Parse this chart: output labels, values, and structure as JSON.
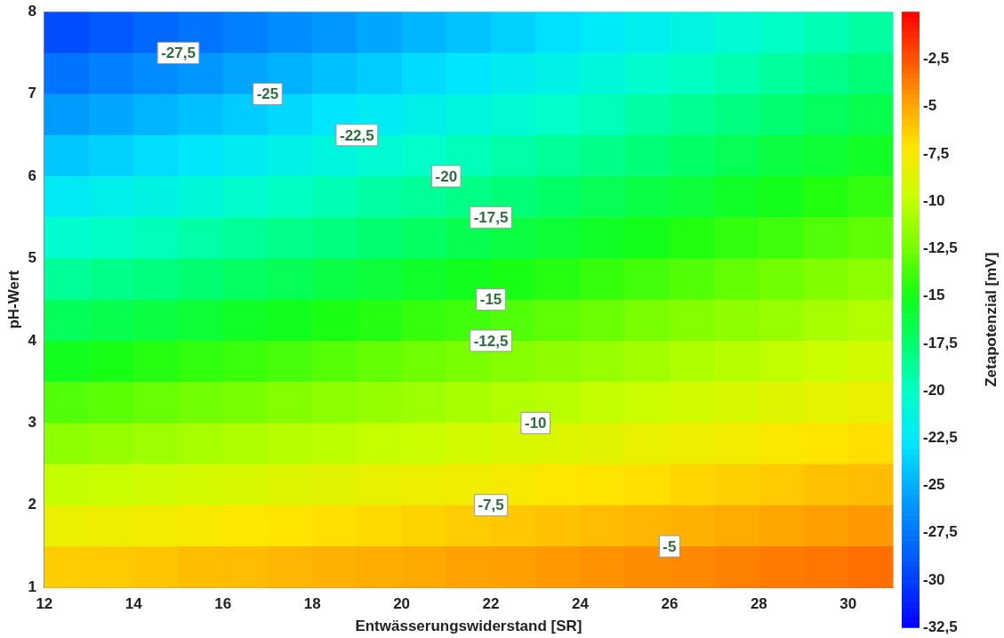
{
  "chart_data": {
    "type": "heatmap",
    "xlabel": "Entwässerungswiderstand [SR]",
    "ylabel": "pH-Wert",
    "clabel": "Zetapotenzial [mV]",
    "x": [
      12.5,
      13.5,
      14.5,
      15.5,
      16.5,
      17.5,
      18.5,
      19.5,
      20.5,
      21.5,
      22.5,
      23.5,
      24.5,
      25.5,
      26.5,
      27.5,
      28.5,
      29.5,
      30.5
    ],
    "y": [
      7.75,
      7.25,
      6.75,
      6.25,
      5.75,
      5.25,
      4.75,
      4.25,
      3.75,
      3.25,
      2.75,
      2.25,
      1.75,
      1.25
    ],
    "cells": [
      [
        -29.4,
        -28.8,
        -28.2,
        -27.6,
        -27.0,
        -26.5,
        -25.9,
        -25.3,
        -24.7,
        -24.2,
        -23.6,
        -23.0,
        -22.4,
        -21.9,
        -21.3,
        -20.7,
        -20.1,
        -19.6,
        -19.0
      ],
      [
        -27.6,
        -27.0,
        -26.5,
        -26.0,
        -25.4,
        -24.9,
        -24.3,
        -23.8,
        -23.2,
        -22.7,
        -22.1,
        -21.6,
        -21.0,
        -20.5,
        -20.0,
        -19.4,
        -18.9,
        -18.3,
        -17.8
      ],
      [
        -25.8,
        -25.3,
        -24.8,
        -24.3,
        -23.8,
        -23.3,
        -22.7,
        -22.2,
        -21.7,
        -21.2,
        -20.7,
        -20.2,
        -19.7,
        -19.1,
        -18.6,
        -18.1,
        -17.6,
        -17.1,
        -16.6
      ],
      [
        -24.0,
        -23.6,
        -23.1,
        -22.6,
        -22.1,
        -21.6,
        -21.2,
        -20.7,
        -20.2,
        -19.7,
        -19.2,
        -18.7,
        -18.3,
        -17.8,
        -17.3,
        -16.8,
        -16.3,
        -15.9,
        -15.4
      ],
      [
        -22.3,
        -21.8,
        -21.4,
        -20.9,
        -20.5,
        -20.0,
        -19.6,
        -19.1,
        -18.7,
        -18.2,
        -17.8,
        -17.3,
        -16.9,
        -16.4,
        -16.0,
        -15.5,
        -15.1,
        -14.6,
        -14.2
      ],
      [
        -20.5,
        -20.1,
        -19.7,
        -19.2,
        -18.8,
        -18.4,
        -18.0,
        -17.6,
        -17.2,
        -16.7,
        -16.3,
        -15.9,
        -15.5,
        -15.1,
        -14.6,
        -14.2,
        -13.8,
        -13.4,
        -13.0
      ],
      [
        -18.7,
        -18.3,
        -18.0,
        -17.6,
        -17.2,
        -16.8,
        -16.4,
        -16.0,
        -15.6,
        -15.2,
        -14.9,
        -14.5,
        -14.1,
        -13.7,
        -13.3,
        -12.9,
        -12.5,
        -12.1,
        -11.7
      ],
      [
        -17.0,
        -16.6,
        -16.3,
        -15.9,
        -15.5,
        -15.2,
        -14.8,
        -14.5,
        -14.1,
        -13.8,
        -13.4,
        -13.0,
        -12.7,
        -12.3,
        -12.0,
        -11.6,
        -11.3,
        -10.9,
        -10.5
      ],
      [
        -15.2,
        -14.9,
        -14.5,
        -14.2,
        -13.9,
        -13.6,
        -13.2,
        -12.9,
        -12.6,
        -12.3,
        -11.9,
        -11.6,
        -11.3,
        -11.0,
        -10.6,
        -10.3,
        -10.0,
        -9.7,
        -9.3
      ],
      [
        -13.4,
        -13.1,
        -12.8,
        -12.5,
        -12.3,
        -12.0,
        -11.7,
        -11.4,
        -11.1,
        -10.8,
        -10.5,
        -10.2,
        -9.9,
        -9.6,
        -9.3,
        -9.0,
        -8.7,
        -8.4,
        -8.1
      ],
      [
        -11.7,
        -11.4,
        -11.1,
        -10.9,
        -10.6,
        -10.3,
        -10.1,
        -9.8,
        -9.6,
        -9.3,
        -9.0,
        -8.8,
        -8.5,
        -8.2,
        -8.0,
        -7.7,
        -7.4,
        -7.2,
        -6.9
      ],
      [
        -9.9,
        -9.7,
        -9.4,
        -9.2,
        -9.0,
        -8.7,
        -8.5,
        -8.3,
        -8.0,
        -7.8,
        -7.6,
        -7.3,
        -7.1,
        -6.9,
        -6.6,
        -6.4,
        -6.2,
        -5.9,
        -5.7
      ],
      [
        -8.1,
        -7.9,
        -7.7,
        -7.5,
        -7.3,
        -7.1,
        -6.9,
        -6.7,
        -6.5,
        -6.3,
        -6.1,
        -5.9,
        -5.7,
        -5.5,
        -5.3,
        -5.1,
        -4.9,
        -4.7,
        -4.5
      ],
      [
        -6.3,
        -6.2,
        -6.0,
        -5.8,
        -5.7,
        -5.5,
        -5.3,
        -5.2,
        -5.0,
        -4.8,
        -4.7,
        -4.5,
        -4.3,
        -4.1,
        -4.0,
        -3.8,
        -3.6,
        -3.5,
        -3.3
      ]
    ],
    "xlim": [
      12,
      31
    ],
    "xticks": [
      12,
      14,
      16,
      18,
      20,
      22,
      24,
      26,
      28,
      30
    ],
    "ylim": [
      1,
      8
    ],
    "yticks": [
      1,
      2,
      3,
      4,
      5,
      6,
      7,
      8
    ],
    "clim": [
      -32.5,
      0
    ],
    "cticks": [
      {
        "value": -2.5,
        "label": "-2,5"
      },
      -5,
      {
        "value": -7.5,
        "label": "-7,5"
      },
      -10,
      {
        "value": -12.5,
        "label": "-12,5"
      },
      -15,
      {
        "value": -17.5,
        "label": "-17,5"
      },
      -20,
      {
        "value": -22.5,
        "label": "-22,5"
      },
      -25,
      {
        "value": -27.5,
        "label": "-27,5"
      },
      -30,
      {
        "value": -32.5,
        "label": "-32,5"
      }
    ],
    "annotations": [
      "-27,5",
      "-25",
      "-22,5",
      "-20",
      "-17,5",
      "-15",
      "-12,5",
      "-10",
      "-7,5",
      "-5"
    ],
    "grid": false
  }
}
